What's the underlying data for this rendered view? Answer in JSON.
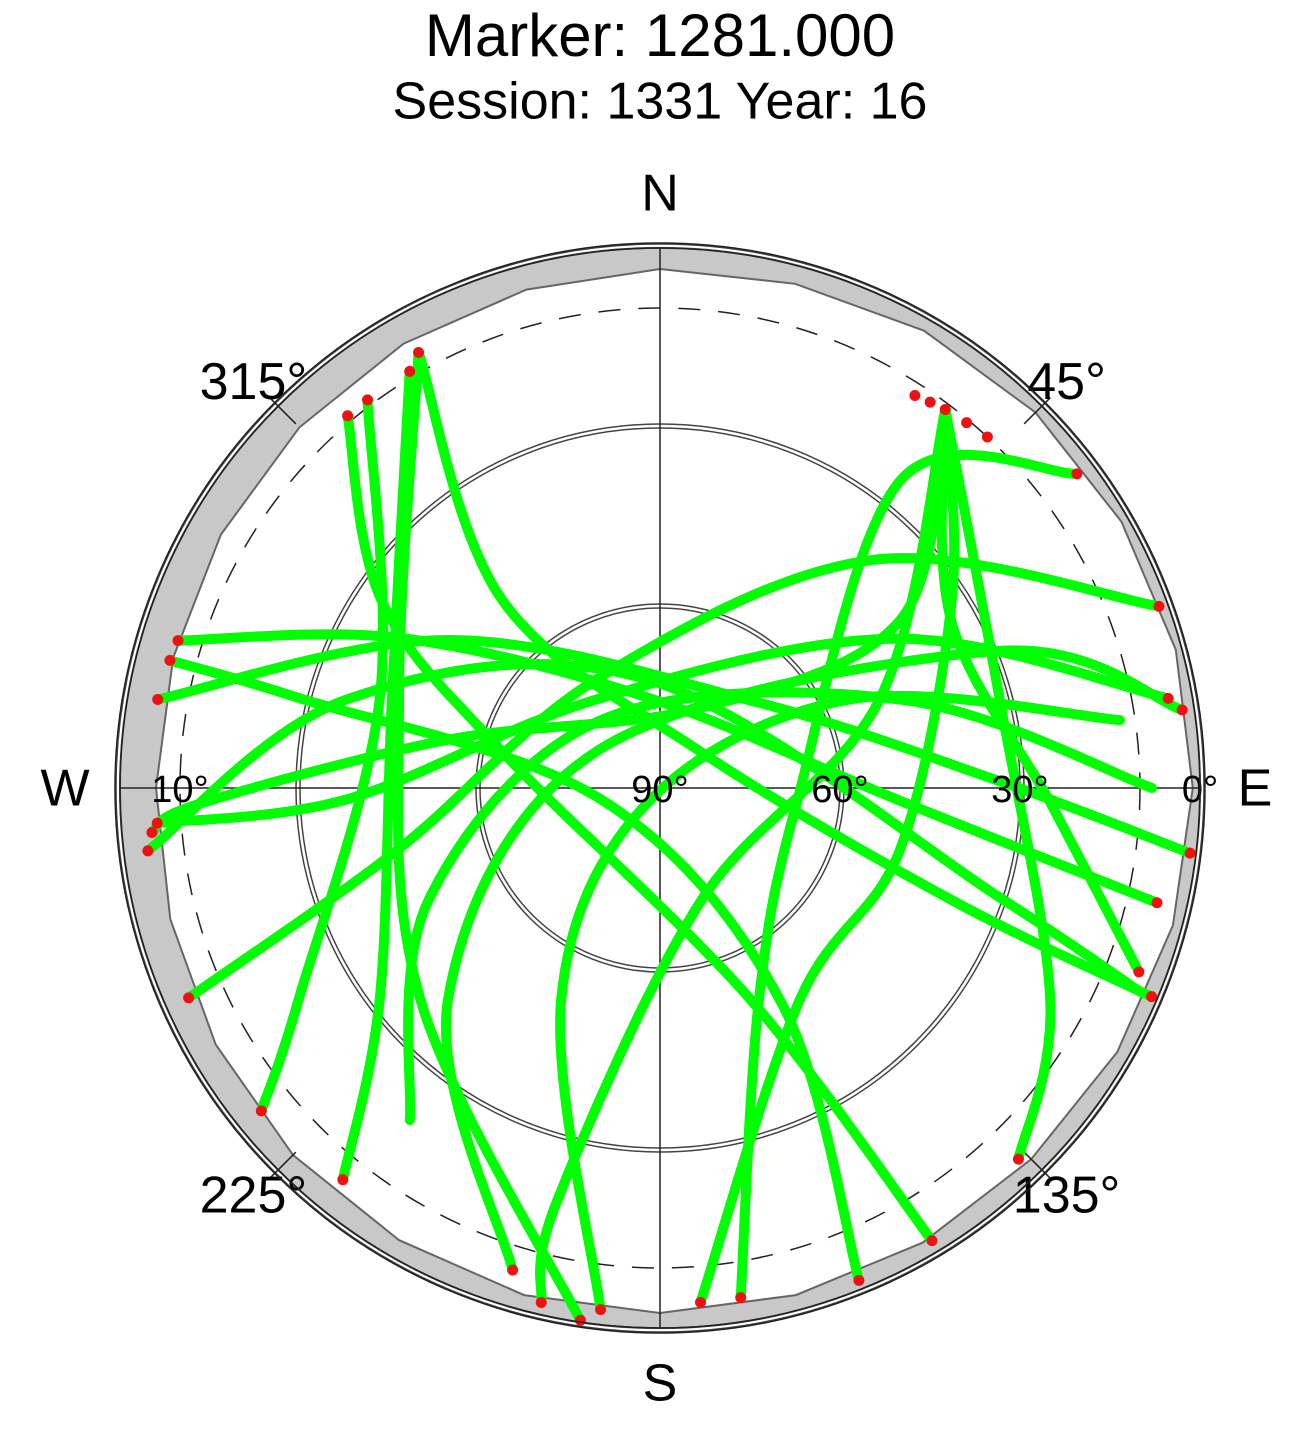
{
  "chart_data": {
    "type": "polar",
    "title": "Marker: 1281.000",
    "subtitle": "Session: 1331 Year: 16",
    "ylim": [
      0,
      90
    ],
    "yticks": [
      {
        "value": 0,
        "label": "0°"
      },
      {
        "value": 30,
        "label": "30°"
      },
      {
        "value": 60,
        "label": "60°"
      },
      {
        "value": 90,
        "label": "90°"
      }
    ],
    "dashed_circle": {
      "value": 10,
      "label": "10°"
    },
    "azimuth_ticks": [
      {
        "value": 0,
        "label": "N"
      },
      {
        "value": 45,
        "label": "45°"
      },
      {
        "value": 90,
        "label": "E"
      },
      {
        "value": 135,
        "label": "135°"
      },
      {
        "value": 180,
        "label": "S"
      },
      {
        "value": 225,
        "label": "225°"
      },
      {
        "value": 270,
        "label": "W"
      },
      {
        "value": 315,
        "label": "315°"
      }
    ],
    "mask": {
      "color": "#c8c8c8",
      "azimuth": [
        0,
        15,
        30,
        45,
        60,
        75,
        90,
        105,
        120,
        135,
        150,
        165,
        180,
        195,
        210,
        225,
        240,
        255,
        270,
        285,
        300,
        315,
        330,
        345
      ],
      "elevation": [
        3.5,
        3,
        2,
        1.5,
        1.2,
        1,
        1.2,
        1.5,
        2,
        2.5,
        2.5,
        2.5,
        2.5,
        2.5,
        3,
        3.5,
        4.5,
        5.5,
        6,
        6,
        5.5,
        5,
        4.5,
        4
      ]
    },
    "series": [
      {
        "color": "#00ff00",
        "azimuth": [
          37,
          55,
          27,
          283,
          268,
          265
        ],
        "elevation": [
          11,
          41,
          75,
          54,
          13,
          5
        ]
      },
      {
        "color": "#00ff00",
        "azimuth": [
          37,
          68,
          160,
          194,
          193
        ],
        "elevation": [
          11,
          50.5,
          70,
          19,
          2
        ]
      },
      {
        "color": "#00ff00",
        "azimuth": [
          329,
          288,
          233,
          219
        ],
        "elevation": [
          9,
          43,
          31.5,
          6
        ]
      },
      {
        "color": "#00ff00",
        "azimuth": [
          331,
          320,
          46,
          111,
          113
        ],
        "elevation": [
          7,
          49,
          81,
          38,
          1
        ]
      },
      {
        "color": "#00ff00",
        "azimuth": [
          320,
          304,
          283,
          157,
          149
        ],
        "elevation": [
          9,
          34,
          63,
          52,
          2
        ]
      },
      {
        "color": "#00ff00",
        "azimuth": [
          287,
          300,
          354,
          93,
          103
        ],
        "elevation": [
          6,
          40,
          75,
          50,
          5
        ]
      },
      {
        "color": "#00ff00",
        "azimuth": [
          280,
          305,
          46,
          89,
          97
        ],
        "elevation": [
          5,
          47,
          69,
          33,
          1
        ]
      },
      {
        "color": "#00ff00",
        "azimuth": [
          80,
          58,
          326,
          268,
          266
        ],
        "elevation": [
          4,
          43,
          72,
          38,
          6
        ]
      },
      {
        "color": "#00ff00",
        "azimuth": [
          70,
          43,
          331,
          257,
          246
        ],
        "elevation": [
          1.5,
          38,
          69,
          45.5,
          4
        ]
      },
      {
        "color": "#00ff00",
        "azimuth": [
          53,
          38,
          95,
          155,
          171
        ],
        "elevation": [
          3,
          25,
          67,
          51,
          4
        ]
      },
      {
        "color": "#00ff00",
        "azimuth": [
          37,
          75.5,
          118.5,
          136
        ],
        "elevation": [
          11,
          31.5,
          16,
          4
        ]
      },
      {
        "color": "#00ff00",
        "azimuth": [
          323,
          287.5,
          239.5,
          231
        ],
        "elevation": [
          9,
          41,
          20,
          4.5
        ]
      },
      {
        "color": "#00ff00",
        "azimuth": [
          186.5,
          205,
          220,
          65,
          81.6
        ],
        "elevation": [
          2.5,
          51,
          87,
          55,
          12.5
        ]
      },
      {
        "color": "#00ff00",
        "azimuth": [
          197,
          225,
          302,
          68,
          81.5
        ],
        "elevation": [
          6,
          40,
          78,
          29,
          2
        ]
      },
      {
        "color": "#00ff00",
        "azimuth": [
          175.5,
          146.6,
          104.5,
          57,
          37
        ],
        "elevation": [
          4,
          47.7,
          48.7,
          32,
          11
        ]
      },
      {
        "color": "#00ff00",
        "azimuth": [
          158,
          150.5,
          259,
          284,
          284.6
        ],
        "elevation": [
          1.5,
          49,
          80,
          28,
          5.6
        ]
      },
      {
        "color": "#00ff00",
        "azimuth": [
          217,
          244,
          319,
          70,
          90
        ],
        "elevation": [
          20.7,
          47,
          75,
          47,
          8
        ]
      },
      {
        "color": "#00ff00",
        "azimuth": [
          188.5,
          228.5,
          289,
          331
        ],
        "elevation": [
          0.3,
          36.7,
          44,
          7
        ]
      },
      {
        "color": "#00ff00",
        "azimuth": [
          111,
          92,
          60,
          37
        ],
        "elevation": [
          4.5,
          25,
          34,
          11
        ]
      },
      {
        "color": "#00ff00",
        "azimuth": [
          263,
          286,
          355,
          108,
          113
        ],
        "elevation": [
          4,
          36,
          72,
          30,
          3
        ]
      }
    ],
    "markers": {
      "color": "#ee1111",
      "azimuth": [
        37,
        40,
        35,
        43,
        33,
        331,
        329,
        323,
        320,
        265,
        193,
        219,
        113,
        149,
        103,
        97,
        266,
        246,
        53,
        171,
        136,
        231,
        186.5,
        81.5,
        197,
        175.5,
        158,
        284.6,
        188.5,
        111,
        263,
        287,
        280,
        70,
        80
      ],
      "elevation": [
        11,
        10.5,
        11.5,
        10,
        12,
        7,
        9,
        9,
        9,
        5,
        2,
        6,
        1,
        2,
        5,
        1,
        6,
        4,
        3,
        4,
        4,
        4.5,
        2.5,
        2,
        6,
        4,
        1.5,
        5.6,
        0.3,
        4.5,
        4,
        6,
        5,
        1.5,
        4
      ]
    }
  }
}
